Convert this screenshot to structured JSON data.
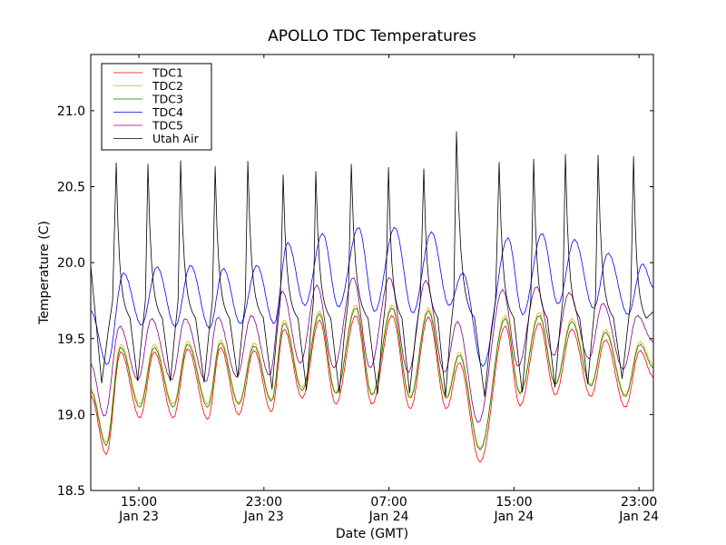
{
  "chart_data": {
    "type": "line",
    "title": "APOLLO TDC Temperatures",
    "xlabel": "Date (GMT)",
    "ylabel": "Temperature (C)",
    "x_unit": "hours since 11:55 Jan 23 (GMT)",
    "xlim": [
      0,
      36.0
    ],
    "ylim": [
      18.5,
      21.37
    ],
    "grid": false,
    "legend_position": "top-left",
    "yticks": [
      {
        "value": 18.5,
        "label": "18.5"
      },
      {
        "value": 19.0,
        "label": "19.0"
      },
      {
        "value": 19.5,
        "label": "19.5"
      },
      {
        "value": 20.0,
        "label": "20.0"
      },
      {
        "value": 20.5,
        "label": "20.5"
      },
      {
        "value": 21.0,
        "label": "21.0"
      }
    ],
    "xticks": [
      {
        "value": 3.08,
        "time": "15:00",
        "date": "Jan 23"
      },
      {
        "value": 11.08,
        "time": "23:00",
        "date": "Jan 23"
      },
      {
        "value": 19.08,
        "time": "07:00",
        "date": "Jan 24"
      },
      {
        "value": 27.08,
        "time": "15:00",
        "date": "Jan 24"
      },
      {
        "value": 35.08,
        "time": "23:00",
        "date": "Jan 24"
      }
    ],
    "series": [
      {
        "name": "TDC1",
        "color": "#ff0000",
        "key": "tdc1",
        "points": [
          [
            0,
            19.12
          ],
          [
            0.99,
            18.74
          ],
          [
            1.92,
            19.41
          ],
          [
            3.14,
            18.98
          ],
          [
            4.07,
            19.41
          ],
          [
            5.28,
            18.98
          ],
          [
            6.21,
            19.43
          ],
          [
            7.49,
            18.97
          ],
          [
            8.3,
            19.44
          ],
          [
            9.47,
            19.0
          ],
          [
            10.45,
            19.42
          ],
          [
            11.56,
            19.02
          ],
          [
            12.37,
            19.56
          ],
          [
            13.53,
            19.11
          ],
          [
            14.63,
            19.62
          ],
          [
            15.68,
            19.07
          ],
          [
            16.96,
            19.65
          ],
          [
            18.0,
            19.07
          ],
          [
            19.28,
            19.65
          ],
          [
            20.44,
            19.04
          ],
          [
            21.6,
            19.64
          ],
          [
            22.76,
            19.04
          ],
          [
            23.58,
            19.34
          ],
          [
            24.91,
            18.69
          ],
          [
            26.52,
            19.58
          ],
          [
            27.47,
            19.06
          ],
          [
            28.69,
            19.6
          ],
          [
            29.73,
            19.13
          ],
          [
            30.78,
            19.56
          ],
          [
            32.0,
            19.12
          ],
          [
            32.93,
            19.49
          ],
          [
            34.2,
            19.05
          ],
          [
            35.14,
            19.42
          ],
          [
            36.0,
            19.25
          ]
        ]
      },
      {
        "name": "TDC2",
        "color": "#ffaa00",
        "key": "tdc2",
        "points": [
          [
            0,
            19.17
          ],
          [
            0.99,
            18.82
          ],
          [
            1.92,
            19.46
          ],
          [
            3.14,
            19.07
          ],
          [
            4.07,
            19.46
          ],
          [
            5.28,
            19.07
          ],
          [
            6.21,
            19.48
          ],
          [
            7.49,
            19.07
          ],
          [
            8.3,
            19.49
          ],
          [
            9.47,
            19.08
          ],
          [
            10.45,
            19.47
          ],
          [
            11.56,
            19.1
          ],
          [
            12.37,
            19.62
          ],
          [
            13.53,
            19.18
          ],
          [
            14.63,
            19.68
          ],
          [
            15.68,
            19.15
          ],
          [
            16.96,
            19.72
          ],
          [
            18.0,
            19.14
          ],
          [
            19.28,
            19.72
          ],
          [
            20.44,
            19.12
          ],
          [
            21.6,
            19.7
          ],
          [
            22.76,
            19.12
          ],
          [
            23.58,
            19.41
          ],
          [
            24.91,
            18.78
          ],
          [
            26.52,
            19.65
          ],
          [
            27.47,
            19.15
          ],
          [
            28.69,
            19.67
          ],
          [
            29.73,
            19.21
          ],
          [
            30.78,
            19.63
          ],
          [
            32.0,
            19.2
          ],
          [
            32.93,
            19.56
          ],
          [
            34.2,
            19.13
          ],
          [
            35.14,
            19.48
          ],
          [
            36.0,
            19.33
          ]
        ]
      },
      {
        "name": "TDC3",
        "color": "#008000",
        "key": "tdc3",
        "points": [
          [
            0,
            19.15
          ],
          [
            0.99,
            18.8
          ],
          [
            1.92,
            19.44
          ],
          [
            3.14,
            19.05
          ],
          [
            4.07,
            19.44
          ],
          [
            5.28,
            19.05
          ],
          [
            6.21,
            19.46
          ],
          [
            7.49,
            19.05
          ],
          [
            8.3,
            19.47
          ],
          [
            9.47,
            19.07
          ],
          [
            10.45,
            19.45
          ],
          [
            11.56,
            19.09
          ],
          [
            12.37,
            19.6
          ],
          [
            13.53,
            19.16
          ],
          [
            14.63,
            19.66
          ],
          [
            15.68,
            19.14
          ],
          [
            16.96,
            19.7
          ],
          [
            18.0,
            19.13
          ],
          [
            19.28,
            19.7
          ],
          [
            20.44,
            19.11
          ],
          [
            21.6,
            19.68
          ],
          [
            22.76,
            19.11
          ],
          [
            23.58,
            19.39
          ],
          [
            24.91,
            18.77
          ],
          [
            26.52,
            19.63
          ],
          [
            27.47,
            19.14
          ],
          [
            28.69,
            19.65
          ],
          [
            29.73,
            19.2
          ],
          [
            30.78,
            19.61
          ],
          [
            32.0,
            19.19
          ],
          [
            32.93,
            19.54
          ],
          [
            34.2,
            19.12
          ],
          [
            35.14,
            19.46
          ],
          [
            36.0,
            19.31
          ]
        ]
      },
      {
        "name": "TDC4",
        "color": "#0000ff",
        "key": "tdc4",
        "points": [
          [
            0,
            19.68
          ],
          [
            1.05,
            19.33
          ],
          [
            2.1,
            19.93
          ],
          [
            3.25,
            19.59
          ],
          [
            4.24,
            19.97
          ],
          [
            5.4,
            19.58
          ],
          [
            6.38,
            19.98
          ],
          [
            7.6,
            19.57
          ],
          [
            8.48,
            19.96
          ],
          [
            9.58,
            19.6
          ],
          [
            10.63,
            19.98
          ],
          [
            11.73,
            19.6
          ],
          [
            12.6,
            20.13
          ],
          [
            13.7,
            19.72
          ],
          [
            14.83,
            20.19
          ],
          [
            15.85,
            19.71
          ],
          [
            17.13,
            20.23
          ],
          [
            18.17,
            19.68
          ],
          [
            19.45,
            20.23
          ],
          [
            20.61,
            19.67
          ],
          [
            21.8,
            20.2
          ],
          [
            22.93,
            19.72
          ],
          [
            23.8,
            19.93
          ],
          [
            25.08,
            19.32
          ],
          [
            26.7,
            20.16
          ],
          [
            27.64,
            19.66
          ],
          [
            28.87,
            20.19
          ],
          [
            29.9,
            19.73
          ],
          [
            30.95,
            20.15
          ],
          [
            32.17,
            19.7
          ],
          [
            33.1,
            20.06
          ],
          [
            34.37,
            19.66
          ],
          [
            35.31,
            19.99
          ],
          [
            36.0,
            19.84
          ]
        ]
      },
      {
        "name": "TDC5",
        "color": "#800080",
        "key": "tdc5",
        "points": [
          [
            0,
            19.33
          ],
          [
            0.88,
            18.99
          ],
          [
            1.86,
            19.58
          ],
          [
            3.02,
            19.23
          ],
          [
            3.89,
            19.63
          ],
          [
            5.17,
            19.23
          ],
          [
            6.04,
            19.63
          ],
          [
            7.37,
            19.22
          ],
          [
            8.13,
            19.64
          ],
          [
            9.35,
            19.25
          ],
          [
            10.28,
            19.65
          ],
          [
            11.44,
            19.26
          ],
          [
            12.25,
            19.81
          ],
          [
            13.41,
            19.34
          ],
          [
            14.46,
            19.85
          ],
          [
            15.56,
            19.31
          ],
          [
            16.79,
            19.9
          ],
          [
            17.88,
            19.31
          ],
          [
            19.11,
            19.9
          ],
          [
            20.32,
            19.28
          ],
          [
            21.43,
            19.88
          ],
          [
            22.64,
            19.28
          ],
          [
            23.46,
            19.61
          ],
          [
            24.8,
            18.95
          ],
          [
            26.36,
            19.82
          ],
          [
            27.35,
            19.32
          ],
          [
            28.52,
            19.84
          ],
          [
            29.62,
            19.39
          ],
          [
            30.61,
            19.8
          ],
          [
            31.88,
            19.37
          ],
          [
            32.76,
            19.73
          ],
          [
            34.08,
            19.3
          ],
          [
            34.97,
            19.65
          ],
          [
            36.0,
            19.48
          ]
        ]
      },
      {
        "name": "Utah Air",
        "color": "#000000",
        "key": "utah_air",
        "peaks": [
          [
            1.63,
            20.66
          ],
          [
            3.66,
            20.65
          ],
          [
            5.75,
            20.67
          ],
          [
            7.96,
            20.63
          ],
          [
            10.05,
            20.67
          ],
          [
            12.31,
            20.58
          ],
          [
            14.4,
            20.6
          ],
          [
            16.67,
            20.65
          ],
          [
            19.05,
            20.63
          ],
          [
            21.31,
            20.62
          ],
          [
            23.4,
            20.86
          ],
          [
            26.13,
            20.66
          ],
          [
            28.34,
            20.68
          ],
          [
            30.37,
            20.71
          ],
          [
            32.46,
            20.71
          ],
          [
            34.73,
            20.7
          ]
        ],
        "troughs": [
          [
            0.7,
            19.21
          ],
          [
            3.0,
            19.22
          ],
          [
            5.1,
            19.22
          ],
          [
            7.25,
            19.21
          ],
          [
            9.4,
            19.24
          ],
          [
            11.6,
            19.17
          ],
          [
            13.8,
            19.16
          ],
          [
            15.9,
            19.14
          ],
          [
            18.35,
            19.14
          ],
          [
            20.4,
            19.14
          ],
          [
            22.7,
            19.12
          ],
          [
            25.2,
            19.12
          ],
          [
            27.6,
            19.15
          ],
          [
            29.7,
            19.18
          ],
          [
            31.8,
            19.2
          ],
          [
            34.0,
            19.24
          ]
        ],
        "start": [
          0,
          19.98
        ],
        "end": [
          36.0,
          19.68
        ]
      }
    ]
  },
  "legend": {
    "items": [
      {
        "label": "TDC1",
        "color": "#ff0000"
      },
      {
        "label": "TDC2",
        "color": "#ffaa00"
      },
      {
        "label": "TDC3",
        "color": "#008000"
      },
      {
        "label": "TDC4",
        "color": "#0000ff"
      },
      {
        "label": "TDC5",
        "color": "#800080"
      },
      {
        "label": "Utah Air",
        "color": "#000000"
      }
    ]
  }
}
